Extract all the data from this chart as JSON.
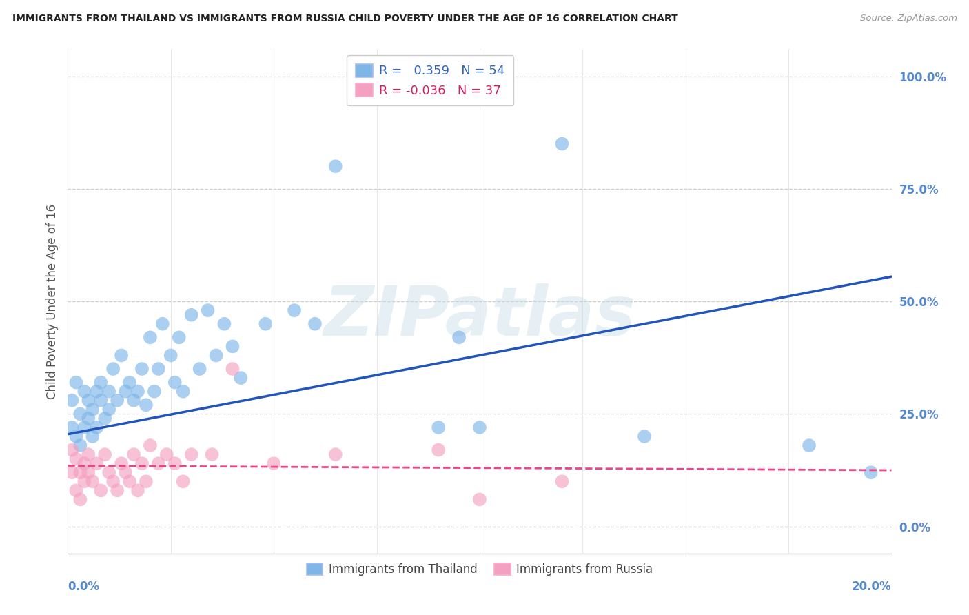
{
  "title": "IMMIGRANTS FROM THAILAND VS IMMIGRANTS FROM RUSSIA CHILD POVERTY UNDER THE AGE OF 16 CORRELATION CHART",
  "source": "Source: ZipAtlas.com",
  "ylabel": "Child Poverty Under the Age of 16",
  "legend_thailand": "Immigrants from Thailand",
  "legend_russia": "Immigrants from Russia",
  "R_thailand": 0.359,
  "N_thailand": 54,
  "R_russia": -0.036,
  "N_russia": 37,
  "color_thailand": "#7EB6E8",
  "color_russia": "#F4A0C0",
  "color_line_thailand": "#2255BB",
  "color_line_russia": "#EE4488",
  "background_color": "#FFFFFF",
  "grid_color": "#CCCCCC",
  "title_color": "#222222",
  "axis_label_color": "#5588CC",
  "watermark_text": "ZIPatlas",
  "right_ytick_labels": [
    "100.0%",
    "75.0%",
    "50.0%",
    "25.0%",
    "0.0%"
  ],
  "right_ytick_vals": [
    1.0,
    0.75,
    0.5,
    0.25,
    0.0
  ],
  "xlim": [
    0.0,
    0.2
  ],
  "ylim": [
    -0.06,
    1.06
  ],
  "thailand_x": [
    0.001,
    0.001,
    0.002,
    0.002,
    0.003,
    0.003,
    0.004,
    0.004,
    0.005,
    0.005,
    0.006,
    0.006,
    0.007,
    0.007,
    0.008,
    0.008,
    0.009,
    0.01,
    0.01,
    0.011,
    0.012,
    0.013,
    0.014,
    0.015,
    0.016,
    0.017,
    0.018,
    0.019,
    0.02,
    0.021,
    0.022,
    0.023,
    0.025,
    0.026,
    0.027,
    0.028,
    0.03,
    0.032,
    0.034,
    0.036,
    0.038,
    0.04,
    0.042,
    0.048,
    0.055,
    0.06,
    0.065,
    0.09,
    0.095,
    0.1,
    0.12,
    0.14,
    0.18,
    0.195
  ],
  "thailand_y": [
    0.22,
    0.28,
    0.2,
    0.32,
    0.25,
    0.18,
    0.3,
    0.22,
    0.28,
    0.24,
    0.26,
    0.2,
    0.3,
    0.22,
    0.28,
    0.32,
    0.24,
    0.26,
    0.3,
    0.35,
    0.28,
    0.38,
    0.3,
    0.32,
    0.28,
    0.3,
    0.35,
    0.27,
    0.42,
    0.3,
    0.35,
    0.45,
    0.38,
    0.32,
    0.42,
    0.3,
    0.47,
    0.35,
    0.48,
    0.38,
    0.45,
    0.4,
    0.33,
    0.45,
    0.48,
    0.45,
    0.8,
    0.22,
    0.42,
    0.22,
    0.85,
    0.2,
    0.18,
    0.12
  ],
  "russia_x": [
    0.001,
    0.001,
    0.002,
    0.002,
    0.003,
    0.003,
    0.004,
    0.004,
    0.005,
    0.005,
    0.006,
    0.007,
    0.008,
    0.009,
    0.01,
    0.011,
    0.012,
    0.013,
    0.014,
    0.015,
    0.016,
    0.017,
    0.018,
    0.019,
    0.02,
    0.022,
    0.024,
    0.026,
    0.028,
    0.03,
    0.035,
    0.04,
    0.05,
    0.065,
    0.09,
    0.1,
    0.12
  ],
  "russia_y": [
    0.17,
    0.12,
    0.15,
    0.08,
    0.12,
    0.06,
    0.14,
    0.1,
    0.16,
    0.12,
    0.1,
    0.14,
    0.08,
    0.16,
    0.12,
    0.1,
    0.08,
    0.14,
    0.12,
    0.1,
    0.16,
    0.08,
    0.14,
    0.1,
    0.18,
    0.14,
    0.16,
    0.14,
    0.1,
    0.16,
    0.16,
    0.35,
    0.14,
    0.16,
    0.17,
    0.06,
    0.1
  ],
  "th_line_x": [
    0.0,
    0.2
  ],
  "th_line_y": [
    0.205,
    0.555
  ],
  "ru_line_x": [
    0.0,
    0.2
  ],
  "ru_line_y": [
    0.135,
    0.125
  ]
}
